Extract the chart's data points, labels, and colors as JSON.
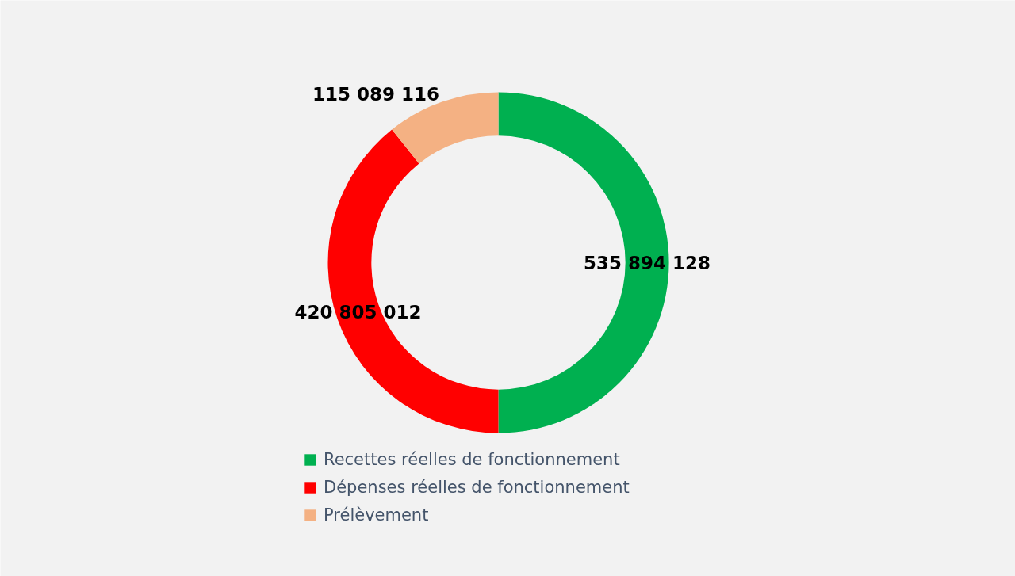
{
  "chart_data": {
    "type": "donut",
    "categories": [
      "Recettes réelles de fonctionnement",
      "Dépenses réelles de fonctionnement",
      "Prélèvement"
    ],
    "values": [
      535894128,
      420805012,
      115089116
    ],
    "colors": [
      "#00b050",
      "#ff0000",
      "#f4b183"
    ],
    "value_labels": [
      "535 894 128",
      "420 805 012",
      "115 089 116"
    ],
    "legend": "bottom"
  }
}
